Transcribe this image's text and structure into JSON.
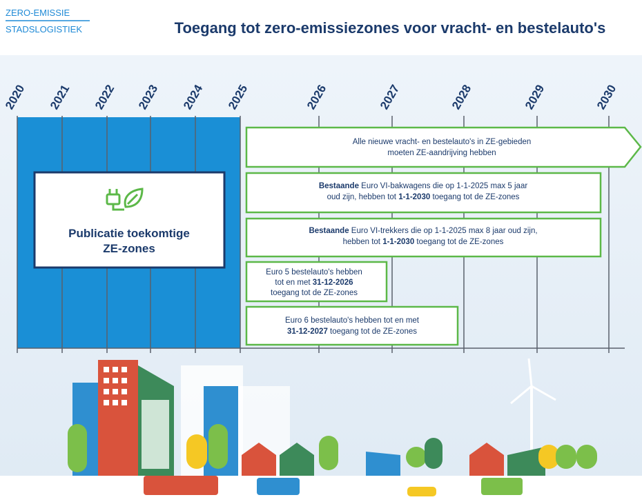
{
  "header": {
    "logo": [
      "ZERO-EMISSIE",
      "STADSLOGISTIEK"
    ],
    "title": "Toegang tot zero-emissiezones voor vracht- en bestelauto's"
  },
  "timeline": {
    "years": [
      "2020",
      "2021",
      "2022",
      "2023",
      "2024",
      "2025",
      "2026",
      "2027",
      "2028",
      "2029",
      "2030"
    ]
  },
  "publication": {
    "label": [
      "Publicatie toekomtige",
      "ZE-zones"
    ]
  },
  "rules": [
    {
      "lines": [
        [
          {
            "text": "Alle nieuwe vracht- en bestelauto's in ZE-gebieden"
          }
        ],
        [
          {
            "text": "moeten ZE-aandrijving hebben"
          }
        ]
      ]
    },
    {
      "lines": [
        [
          {
            "text": "Bestaande",
            "bold": true
          },
          {
            "text": " Euro VI-bakwagens die op 1-1-2025 max 5 jaar"
          }
        ],
        [
          {
            "text": "oud zijn, hebben tot "
          },
          {
            "text": "1-1-2030",
            "bold": true
          },
          {
            "text": " toegang tot de ZE-zones"
          }
        ]
      ]
    },
    {
      "lines": [
        [
          {
            "text": "Bestaande",
            "bold": true
          },
          {
            "text": " Euro VI-trekkers die op 1-1-2025 max 8 jaar oud zijn,"
          }
        ],
        [
          {
            "text": "hebben tot "
          },
          {
            "text": "1-1-2030",
            "bold": true
          },
          {
            "text": " toegang tot de ZE-zones"
          }
        ]
      ]
    },
    {
      "lines": [
        [
          {
            "text": "Euro 5 bestelauto's hebben"
          }
        ],
        [
          {
            "text": "tot en met "
          },
          {
            "text": "31-12-2026",
            "bold": true
          }
        ],
        [
          {
            "text": "toegang tot de ZE-zones"
          }
        ]
      ]
    },
    {
      "lines": [
        [
          {
            "text": "Euro 6 bestelauto's hebben tot en met"
          }
        ],
        [
          {
            "text": "31-12-2027",
            "bold": true
          },
          {
            "text": " toegang tot de ZE-zones"
          }
        ]
      ]
    }
  ]
}
